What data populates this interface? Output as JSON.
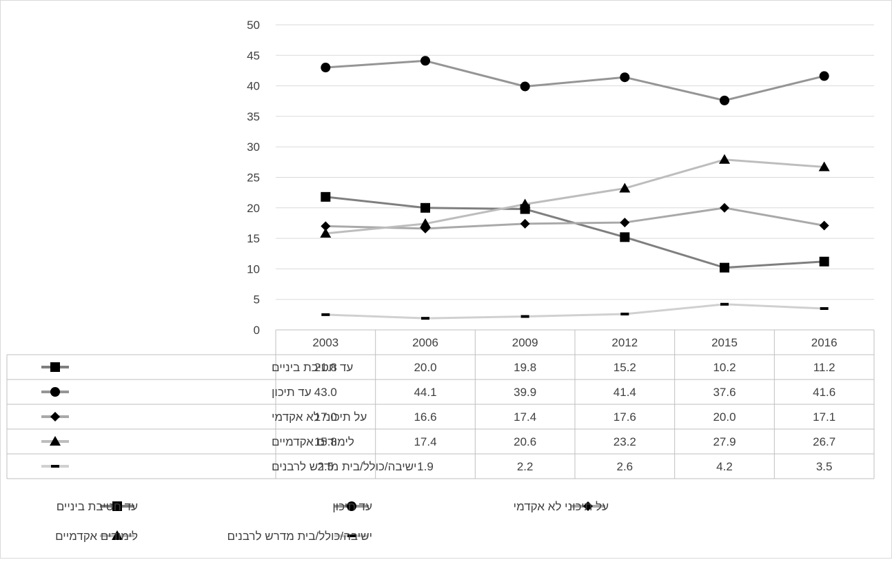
{
  "chart_data": {
    "type": "line",
    "title": "",
    "xlabel": "",
    "ylabel": "",
    "categories": [
      "2003",
      "2006",
      "2009",
      "2012",
      "2015",
      "2016"
    ],
    "ylim": [
      0,
      50
    ],
    "yticks": [
      0,
      5,
      10,
      15,
      20,
      25,
      30,
      35,
      40,
      45,
      50
    ],
    "grid": true,
    "legend_position": "bottom",
    "data_table": true,
    "series": [
      {
        "name": "עד חטיבת ביניים",
        "marker": "square",
        "color": "#7f7f7f",
        "values": [
          21.8,
          20.0,
          19.8,
          15.2,
          10.2,
          11.2
        ],
        "labels": [
          "21.8",
          "20.0",
          "19.8",
          "15.2",
          "10.2",
          "11.2"
        ]
      },
      {
        "name": "עד תיכון",
        "marker": "circle",
        "color": "#959595",
        "values": [
          43.0,
          44.1,
          39.9,
          41.4,
          37.6,
          41.6
        ],
        "labels": [
          "43.0",
          "44.1",
          "39.9",
          "41.4",
          "37.6",
          "41.6"
        ]
      },
      {
        "name": "על תיכוני לא אקדמי",
        "marker": "diamond",
        "color": "#a9a9a9",
        "values": [
          17.0,
          16.6,
          17.4,
          17.6,
          20.0,
          17.1
        ],
        "labels": [
          "17.0",
          "16.6",
          "17.4",
          "17.6",
          "20.0",
          "17.1"
        ]
      },
      {
        "name": "לימודים אקדמיים",
        "marker": "triangle",
        "color": "#bdbdbd",
        "values": [
          15.8,
          17.4,
          20.6,
          23.2,
          27.9,
          26.7
        ],
        "labels": [
          "15.8",
          "17.4",
          "20.6",
          "23.2",
          "27.9",
          "26.7"
        ]
      },
      {
        "name": "ישיבה/כולל/בית מדרש לרבנים",
        "marker": "dash",
        "color": "#d0d0d0",
        "values": [
          2.5,
          1.9,
          2.2,
          2.6,
          4.2,
          3.5
        ],
        "labels": [
          "2.5",
          "1.9",
          "2.2",
          "2.6",
          "4.2",
          "3.5"
        ]
      }
    ]
  }
}
